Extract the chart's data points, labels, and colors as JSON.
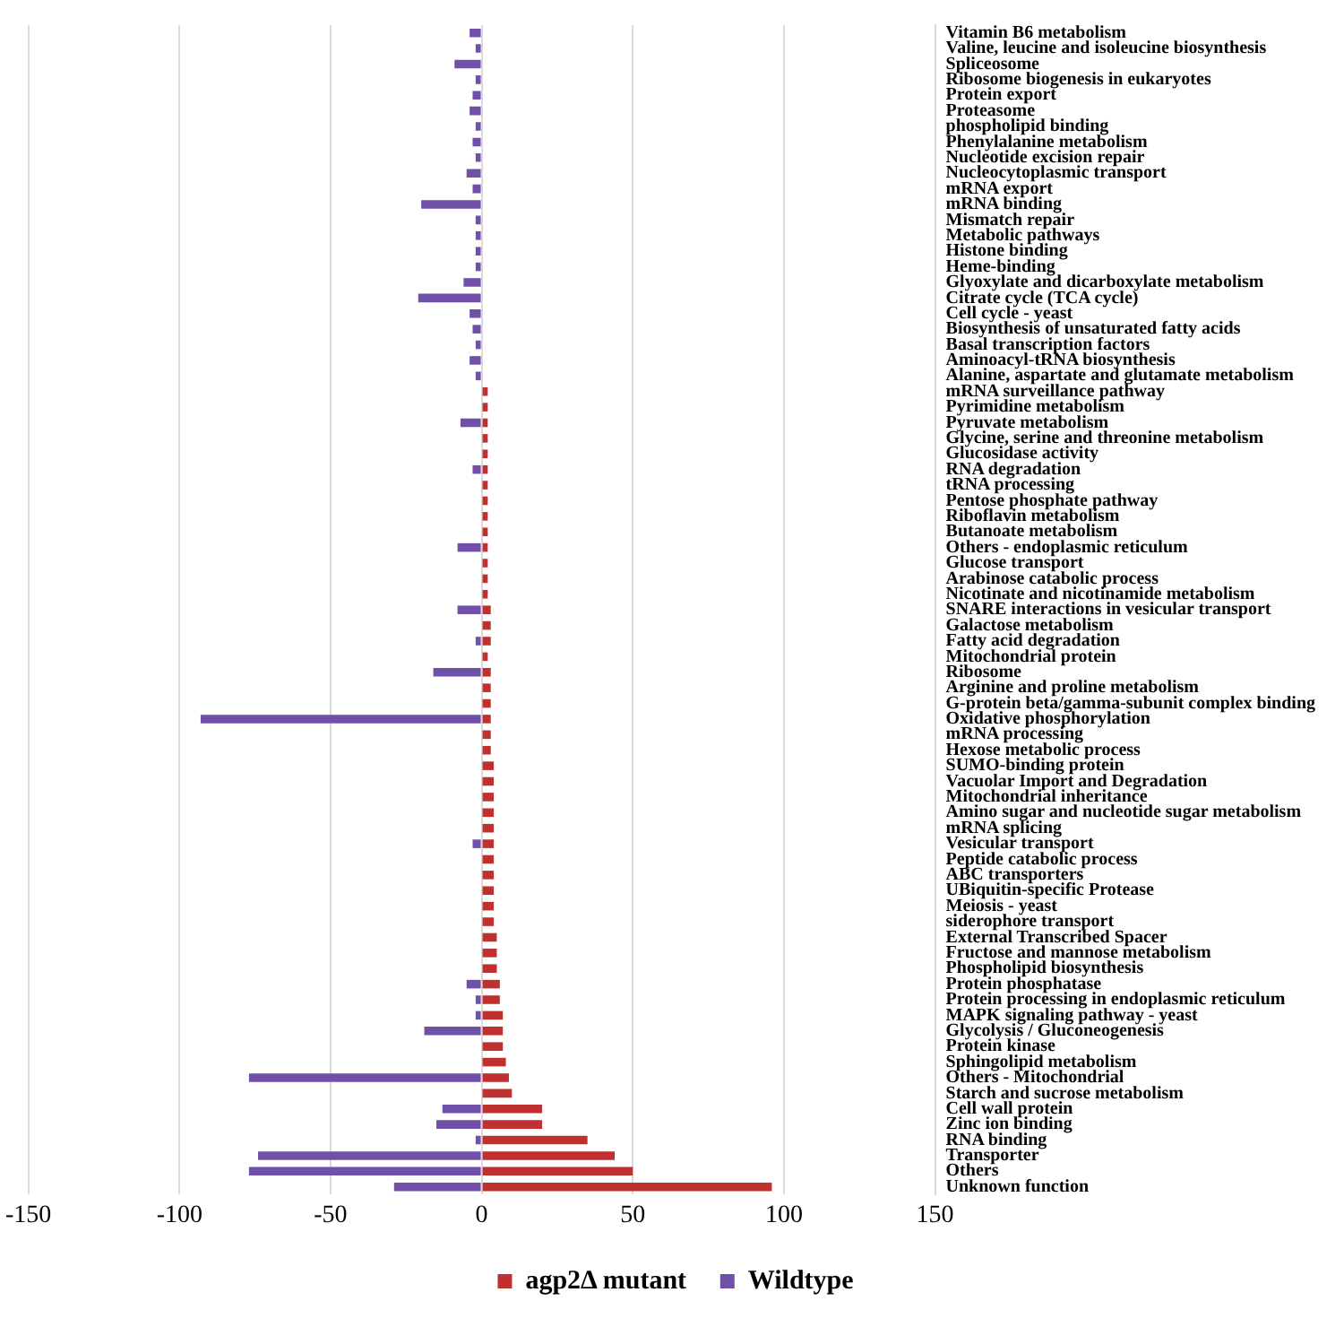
{
  "chart_data": {
    "type": "bar",
    "orientation": "horizontal",
    "grid": "x",
    "legend": "bottom",
    "categories": [
      "Vitamin B6 metabolism",
      "Valine, leucine and isoleucine biosynthesis",
      "Spliceosome",
      "Ribosome biogenesis in eukaryotes",
      "Protein export",
      "Proteasome",
      "phospholipid binding",
      "Phenylalanine metabolism",
      "Nucleotide excision repair",
      "Nucleocytoplasmic transport",
      "mRNA export",
      "mRNA binding",
      "Mismatch repair",
      "Metabolic pathways",
      "Histone binding",
      "Heme-binding",
      "Glyoxylate and dicarboxylate metabolism",
      "Citrate cycle (TCA cycle)",
      "Cell cycle - yeast",
      "Biosynthesis of unsaturated fatty acids",
      "Basal transcription factors",
      "Aminoacyl-tRNA biosynthesis",
      "Alanine, aspartate and glutamate metabolism",
      "mRNA surveillance pathway",
      "Pyrimidine metabolism",
      "Pyruvate metabolism",
      "Glycine, serine and threonine metabolism",
      "Glucosidase activity",
      "RNA degradation",
      "tRNA processing",
      "Pentose phosphate pathway",
      "Riboflavin metabolism",
      "Butanoate metabolism",
      "Others - endoplasmic reticulum",
      "Glucose transport",
      "Arabinose catabolic process",
      "Nicotinate and nicotinamide metabolism",
      "SNARE interactions in vesicular transport",
      "Galactose metabolism",
      "Fatty acid degradation",
      "Mitochondrial protein",
      "Ribosome",
      "Arginine and proline metabolism",
      "G-protein beta/gamma-subunit complex binding",
      "Oxidative phosphorylation",
      "mRNA processing",
      "Hexose metabolic process",
      "SUMO-binding protein",
      "Vacuolar Import and Degradation",
      "Mitochondrial inheritance",
      "Amino sugar and nucleotide sugar metabolism",
      "mRNA splicing",
      "Vesicular transport",
      "Peptide catabolic process",
      "ABC transporters",
      "UBiquitin-specific Protease",
      "Meiosis - yeast",
      "siderophore transport",
      "External Transcribed Spacer",
      "Fructose and mannose metabolism",
      "Phospholipid biosynthesis",
      "Protein phosphatase",
      "Protein processing in endoplasmic reticulum",
      "MAPK signaling pathway - yeast",
      "Glycolysis / Gluconeogenesis",
      "Protein kinase",
      "Sphingolipid metabolism",
      "Others - Mitochondrial",
      "Starch and sucrose metabolism",
      "Cell wall protein",
      "Zinc ion binding",
      "RNA binding",
      "Transporter",
      "Others",
      "Unknown function"
    ],
    "series": [
      {
        "name": "agp2Δ mutant",
        "color": "#c0302f",
        "values": [
          0,
          0,
          0,
          0,
          0,
          0,
          0,
          0,
          0,
          0,
          0,
          0,
          0,
          0,
          0,
          0,
          0,
          0,
          0,
          0,
          0,
          0,
          0,
          2,
          2,
          2,
          2,
          2,
          2,
          2,
          2,
          2,
          2,
          2,
          2,
          2,
          2,
          3,
          3,
          3,
          2,
          3,
          3,
          3,
          3,
          3,
          3,
          4,
          4,
          4,
          4,
          4,
          4,
          4,
          4,
          4,
          4,
          4,
          5,
          5,
          5,
          6,
          6,
          7,
          7,
          7,
          8,
          9,
          10,
          20,
          20,
          35,
          44,
          50,
          96
        ]
      },
      {
        "name": "Wildtype",
        "color": "#7050a8",
        "values": [
          -4,
          -2,
          -9,
          -2,
          -3,
          -4,
          -2,
          -3,
          -2,
          -5,
          -3,
          -20,
          -2,
          -2,
          -2,
          -2,
          -6,
          -21,
          -4,
          -3,
          -2,
          -4,
          -2,
          0,
          0,
          -7,
          0,
          0,
          -3,
          0,
          0,
          0,
          0,
          -8,
          0,
          0,
          0,
          -8,
          0,
          -2,
          0,
          -16,
          0,
          0,
          -93,
          0,
          0,
          0,
          0,
          0,
          0,
          0,
          -3,
          0,
          0,
          0,
          0,
          0,
          0,
          0,
          0,
          -5,
          -2,
          -2,
          -19,
          0,
          0,
          -77,
          0,
          -13,
          -15,
          -2,
          -74,
          -77,
          -29
        ]
      }
    ],
    "xlim": [
      -150,
      150
    ],
    "xticks": [
      -150,
      -100,
      -50,
      0,
      50,
      100,
      150
    ]
  }
}
